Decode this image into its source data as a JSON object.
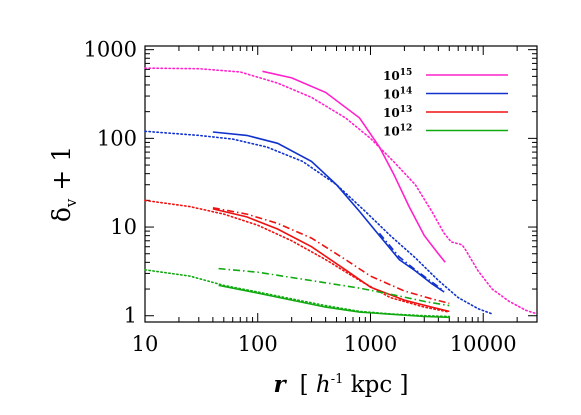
{
  "chart_data": {
    "type": "line",
    "xscale": "log",
    "yscale": "log",
    "xlim": [
      10,
      30000
    ],
    "ylim": [
      0.85,
      1100
    ],
    "ylabel": {
      "main": "δ",
      "sub": "v",
      "tail": " + 1"
    },
    "xlabel": {
      "var": "r",
      "open": "[ ",
      "h": "h",
      "exp": "-1",
      "unit": " kpc ]"
    },
    "xticks": [
      {
        "value": 10,
        "label": "10"
      },
      {
        "value": 100,
        "label": "100"
      },
      {
        "value": 1000,
        "label": "1000"
      },
      {
        "value": 10000,
        "label": "10000"
      }
    ],
    "yticks": [
      {
        "value": 1,
        "label": "1"
      },
      {
        "value": 10,
        "label": "10"
      },
      {
        "value": 100,
        "label": "100"
      },
      {
        "value": 1000,
        "label": "1000"
      }
    ],
    "legend": [
      {
        "base": "10",
        "exp": "15",
        "color": "#ff22cc"
      },
      {
        "base": "10",
        "exp": "14",
        "color": "#1133cc"
      },
      {
        "base": "10",
        "exp": "13",
        "color": "#ee1111"
      },
      {
        "base": "10",
        "exp": "12",
        "color": "#11aa11"
      }
    ],
    "series": [
      {
        "legend": 0,
        "style": "solid",
        "color": "#ff22cc",
        "points": [
          [
            110,
            570
          ],
          [
            200,
            480
          ],
          [
            400,
            330
          ],
          [
            800,
            170
          ],
          [
            1200,
            80
          ],
          [
            1600,
            40
          ],
          [
            2200,
            17
          ],
          [
            3000,
            8
          ],
          [
            4000,
            5
          ],
          [
            4600,
            4
          ]
        ]
      },
      {
        "legend": 0,
        "style": "dotted",
        "color": "#ff22cc",
        "points": [
          [
            10,
            620
          ],
          [
            30,
            610
          ],
          [
            70,
            560
          ],
          [
            150,
            420
          ],
          [
            300,
            290
          ],
          [
            600,
            170
          ],
          [
            1000,
            100
          ],
          [
            1600,
            55
          ],
          [
            2500,
            30
          ],
          [
            3500,
            15
          ],
          [
            4500,
            8.5
          ],
          [
            5200,
            6.8
          ],
          [
            6500,
            6.3
          ],
          [
            7000,
            5.5
          ],
          [
            9000,
            3.2
          ],
          [
            12000,
            2.0
          ],
          [
            17000,
            1.45
          ],
          [
            24000,
            1.15
          ],
          [
            30000,
            1.05
          ]
        ]
      },
      {
        "legend": 1,
        "style": "solid",
        "color": "#1133cc",
        "points": [
          [
            40,
            118
          ],
          [
            80,
            108
          ],
          [
            150,
            88
          ],
          [
            300,
            55
          ],
          [
            500,
            30
          ],
          [
            800,
            15
          ],
          [
            1200,
            8
          ],
          [
            1800,
            4.3
          ],
          [
            2500,
            3.2
          ],
          [
            3500,
            2.3
          ],
          [
            4500,
            1.85
          ]
        ]
      },
      {
        "legend": 1,
        "style": "dotted",
        "color": "#1133cc",
        "points": [
          [
            10,
            120
          ],
          [
            30,
            108
          ],
          [
            60,
            98
          ],
          [
            120,
            80
          ],
          [
            250,
            55
          ],
          [
            500,
            30
          ],
          [
            900,
            15
          ],
          [
            1500,
            8
          ],
          [
            2500,
            4.5
          ],
          [
            4000,
            2.5
          ],
          [
            6000,
            1.6
          ],
          [
            9000,
            1.2
          ],
          [
            12000,
            1.05
          ]
        ]
      },
      {
        "legend": 1,
        "style": "dashdot",
        "color": "#1133cc",
        "points": [
          [
            1200,
            8.5
          ],
          [
            1800,
            4.6
          ],
          [
            2500,
            3.3
          ],
          [
            3500,
            2.4
          ],
          [
            4500,
            1.9
          ]
        ]
      },
      {
        "legend": 2,
        "style": "solid",
        "color": "#ee1111",
        "points": [
          [
            40,
            16
          ],
          [
            80,
            13
          ],
          [
            150,
            9.5
          ],
          [
            300,
            6
          ],
          [
            600,
            3.3
          ],
          [
            1000,
            2.1
          ],
          [
            2000,
            1.5
          ],
          [
            3500,
            1.25
          ],
          [
            5000,
            1.12
          ]
        ]
      },
      {
        "legend": 2,
        "style": "dotted",
        "color": "#ee1111",
        "points": [
          [
            10,
            20
          ],
          [
            25,
            17
          ],
          [
            50,
            14
          ],
          [
            100,
            10.5
          ],
          [
            200,
            7
          ],
          [
            400,
            4.3
          ],
          [
            800,
            2.5
          ],
          [
            1500,
            1.6
          ],
          [
            3000,
            1.25
          ],
          [
            5000,
            1.1
          ]
        ]
      },
      {
        "legend": 2,
        "style": "dashdot",
        "color": "#ee1111",
        "points": [
          [
            40,
            16.5
          ],
          [
            80,
            14
          ],
          [
            150,
            11
          ],
          [
            300,
            7.5
          ],
          [
            600,
            4.3
          ],
          [
            1000,
            2.8
          ],
          [
            2000,
            1.9
          ],
          [
            3500,
            1.55
          ],
          [
            5000,
            1.38
          ]
        ]
      },
      {
        "legend": 3,
        "style": "solid",
        "color": "#11aa11",
        "points": [
          [
            45,
            2.2
          ],
          [
            100,
            1.8
          ],
          [
            200,
            1.5
          ],
          [
            400,
            1.25
          ],
          [
            800,
            1.1
          ],
          [
            1500,
            1.04
          ],
          [
            3000,
            0.98
          ],
          [
            5000,
            0.96
          ]
        ]
      },
      {
        "legend": 3,
        "style": "dotted",
        "color": "#11aa11",
        "points": [
          [
            10,
            3.3
          ],
          [
            25,
            2.8
          ],
          [
            50,
            2.2
          ],
          [
            100,
            1.85
          ],
          [
            200,
            1.55
          ],
          [
            400,
            1.3
          ],
          [
            800,
            1.12
          ],
          [
            1500,
            1.05
          ],
          [
            3000,
            1.0
          ],
          [
            5000,
            0.98
          ]
        ]
      },
      {
        "legend": 3,
        "style": "dashdot",
        "color": "#11aa11",
        "points": [
          [
            45,
            3.4
          ],
          [
            100,
            3.1
          ],
          [
            200,
            2.7
          ],
          [
            400,
            2.35
          ],
          [
            800,
            2.05
          ],
          [
            1500,
            1.75
          ],
          [
            3000,
            1.45
          ],
          [
            5000,
            1.3
          ]
        ]
      }
    ]
  }
}
